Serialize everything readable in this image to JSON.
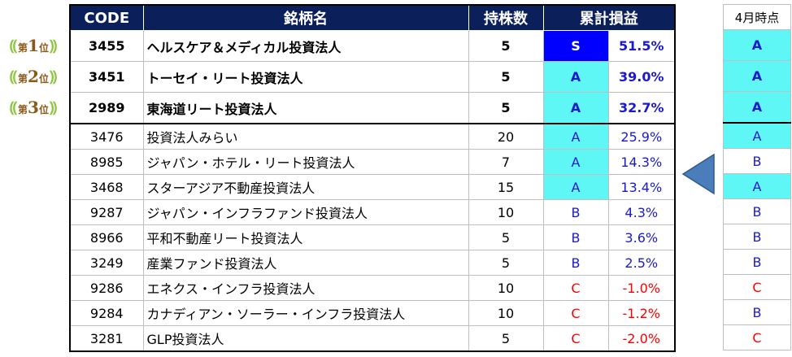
{
  "header": {
    "code": "CODE",
    "name": "銘柄名",
    "shares": "持株数",
    "gain": "累計損益",
    "april": "4月時点"
  },
  "ranks": [
    {
      "pre": "第",
      "num": "1",
      "post": "位"
    },
    {
      "pre": "第",
      "num": "2",
      "post": "位"
    },
    {
      "pre": "第",
      "num": "3",
      "post": "位"
    }
  ],
  "rows": [
    {
      "code": "3455",
      "name": "ヘルスケア＆メディカル投資法人",
      "shares": "5",
      "grade": "S",
      "pct": "51.5%",
      "april": "A"
    },
    {
      "code": "3451",
      "name": "トーセイ・リート投資法人",
      "shares": "5",
      "grade": "A",
      "pct": "39.0%",
      "april": "A"
    },
    {
      "code": "2989",
      "name": "東海道リート投資法人",
      "shares": "5",
      "grade": "A",
      "pct": "32.7%",
      "april": "A"
    },
    {
      "code": "3476",
      "name": "投資法人みらい",
      "shares": "20",
      "grade": "A",
      "pct": "25.9%",
      "april": "A"
    },
    {
      "code": "8985",
      "name": "ジャパン・ホテル・リート投資法人",
      "shares": "7",
      "grade": "A",
      "pct": "14.3%",
      "april": "B"
    },
    {
      "code": "3468",
      "name": "スターアジア不動産投資法人",
      "shares": "15",
      "grade": "A",
      "pct": "13.4%",
      "april": "A"
    },
    {
      "code": "9287",
      "name": "ジャパン・インフラファンド投資法人",
      "shares": "10",
      "grade": "B",
      "pct": "4.3%",
      "april": "B"
    },
    {
      "code": "8966",
      "name": "平和不動産リート投資法人",
      "shares": "5",
      "grade": "B",
      "pct": "3.6%",
      "april": "B"
    },
    {
      "code": "3249",
      "name": "産業ファンド投資法人",
      "shares": "5",
      "grade": "B",
      "pct": "2.5%",
      "april": "B"
    },
    {
      "code": "9286",
      "name": "エネクス・インフラ投資法人",
      "shares": "10",
      "grade": "C",
      "pct": "-1.0%",
      "april": "C"
    },
    {
      "code": "9284",
      "name": "カナディアン・ソーラー・インフラ投資法人",
      "shares": "10",
      "grade": "C",
      "pct": "-1.2%",
      "april": "B"
    },
    {
      "code": "3281",
      "name": "GLP投資法人",
      "shares": "5",
      "grade": "C",
      "pct": "-2.0%",
      "april": "C"
    }
  ],
  "colors": {
    "header_bg": "#0b1f5b",
    "cyan": "#5ff6f6",
    "blue": "#0000ff",
    "grade_b": "#1a1acc",
    "red": "#ff0000",
    "laurel": "#8cc63e",
    "arrow": "#4a7ebb"
  }
}
